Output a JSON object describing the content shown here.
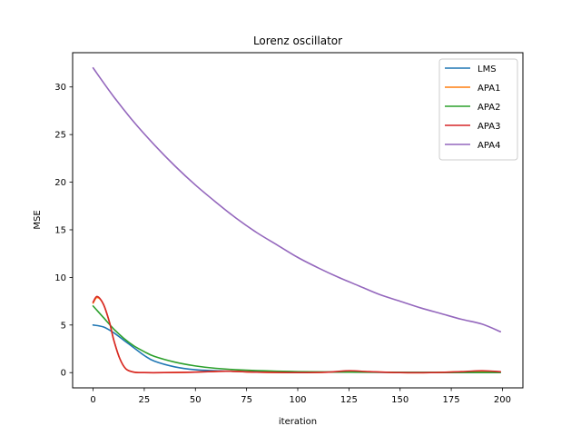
{
  "chart_data": {
    "type": "line",
    "title": "Lorenz oscillator",
    "xlabel": "iteration",
    "ylabel": "MSE",
    "xlim": [
      -10,
      210
    ],
    "ylim": [
      -1.6,
      33.6
    ],
    "xticks": [
      0,
      25,
      50,
      75,
      100,
      125,
      150,
      175,
      200
    ],
    "yticks": [
      0,
      5,
      10,
      15,
      20,
      25,
      30
    ],
    "grid": false,
    "legend_position": "top-right",
    "series": [
      {
        "name": "LMS",
        "color": "#1f77b4",
        "x": [
          0,
          5,
          10,
          15,
          20,
          25,
          30,
          40,
          50,
          60,
          75,
          100,
          125,
          150,
          175,
          199
        ],
        "y": [
          5.0,
          4.8,
          4.2,
          3.4,
          2.6,
          1.8,
          1.2,
          0.6,
          0.3,
          0.2,
          0.1,
          0.05,
          0.05,
          0.02,
          0.02,
          0.02
        ]
      },
      {
        "name": "APA1",
        "color": "#ff7f0e",
        "x": [
          0,
          2,
          5,
          8,
          10,
          13,
          16,
          20,
          25,
          35,
          50,
          65,
          80,
          100,
          115,
          125,
          135,
          150,
          165,
          180,
          190,
          199
        ],
        "y": [
          7.3,
          7.9,
          7.2,
          5.3,
          3.5,
          1.5,
          0.4,
          0.05,
          0.0,
          0.0,
          0.05,
          0.15,
          0.05,
          0.0,
          0.05,
          0.15,
          0.1,
          0.0,
          0.0,
          0.1,
          0.15,
          0.05
        ]
      },
      {
        "name": "APA2",
        "color": "#2ca02c",
        "x": [
          0,
          5,
          10,
          15,
          20,
          25,
          30,
          40,
          50,
          60,
          75,
          100,
          125,
          150,
          175,
          199
        ],
        "y": [
          7.0,
          5.8,
          4.6,
          3.6,
          2.8,
          2.2,
          1.7,
          1.1,
          0.7,
          0.45,
          0.25,
          0.1,
          0.05,
          0.03,
          0.02,
          0.02
        ]
      },
      {
        "name": "APA3",
        "color": "#d62728",
        "x": [
          0,
          2,
          5,
          8,
          10,
          13,
          16,
          20,
          25,
          35,
          50,
          65,
          80,
          100,
          115,
          125,
          135,
          150,
          165,
          180,
          190,
          199
        ],
        "y": [
          7.4,
          8.0,
          7.2,
          5.3,
          3.5,
          1.5,
          0.4,
          0.05,
          0.0,
          0.0,
          0.05,
          0.15,
          0.05,
          0.0,
          0.05,
          0.2,
          0.1,
          0.0,
          0.0,
          0.1,
          0.2,
          0.1
        ]
      },
      {
        "name": "APA4",
        "color": "#9467bd",
        "x": [
          0,
          10,
          20,
          30,
          40,
          50,
          60,
          70,
          80,
          90,
          100,
          110,
          120,
          130,
          140,
          150,
          160,
          170,
          180,
          190,
          199
        ],
        "y": [
          32.0,
          29.0,
          26.3,
          23.9,
          21.7,
          19.7,
          17.9,
          16.2,
          14.7,
          13.4,
          12.1,
          11.0,
          10.0,
          9.1,
          8.2,
          7.5,
          6.8,
          6.2,
          5.6,
          5.1,
          4.3
        ]
      }
    ]
  }
}
